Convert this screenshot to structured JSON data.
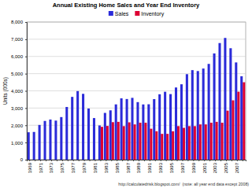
{
  "chart_data": {
    "type": "bar",
    "title": "Annual Existing Home Sales and Year End Inventory",
    "y_label": "Units (000s)",
    "annotations": [
      "http://calculatedrisk.blogspot.com/",
      "(note: all year end data except 2008)"
    ],
    "categories": [
      "1969",
      null,
      "1971",
      null,
      "1973",
      null,
      "1975",
      null,
      "1977",
      null,
      "1979",
      null,
      "1981",
      null,
      "1983",
      null,
      "1985",
      null,
      "1987",
      null,
      "1989",
      null,
      "1991",
      null,
      "1993",
      null,
      "1995",
      null,
      "1997",
      null,
      "1999",
      null,
      "2001",
      null,
      "2003",
      null,
      "2005",
      null,
      "2007",
      null
    ],
    "series": [
      {
        "name": "Sales",
        "color": "#2b2bd9",
        "values": [
          1594,
          1612,
          2018,
          2252,
          2334,
          2272,
          2476,
          3064,
          3650,
          3986,
          3827,
          2973,
          2419,
          1990,
          2719,
          2868,
          3214,
          3565,
          3526,
          3594,
          3346,
          3211,
          3220,
          3520,
          3802,
          3946,
          3812,
          4196,
          4382,
          4970,
          5205,
          5152,
          5296,
          5566,
          6175,
          6778,
          7076,
          6478,
          5652,
          4850
        ]
      },
      {
        "name": "Inventory",
        "color": "#dd0033",
        "values": [
          null,
          null,
          null,
          null,
          null,
          null,
          null,
          null,
          null,
          null,
          null,
          null,
          null,
          1910,
          1960,
          2180,
          2200,
          1950,
          2170,
          2050,
          2150,
          2150,
          1800,
          1650,
          1500,
          1500,
          1650,
          1950,
          1850,
          1950,
          1950,
          2050,
          2050,
          2150,
          2200,
          2150,
          2850,
          3450,
          3950,
          4500
        ]
      }
    ],
    "ylim": [
      0,
      8000
    ],
    "yticks": [
      0,
      {
        "value": 1000,
        "label": "1,000"
      },
      {
        "value": 2000,
        "label": "2,000"
      },
      {
        "value": 3000,
        "label": "3,000"
      },
      {
        "value": 4000,
        "label": "4,000"
      },
      {
        "value": 5000,
        "label": "5,000"
      },
      {
        "value": 6000,
        "label": "6,000"
      },
      {
        "value": 7000,
        "label": "7,000"
      },
      {
        "value": 8000,
        "label": "8,000"
      }
    ],
    "grid": true,
    "legend": "top"
  }
}
